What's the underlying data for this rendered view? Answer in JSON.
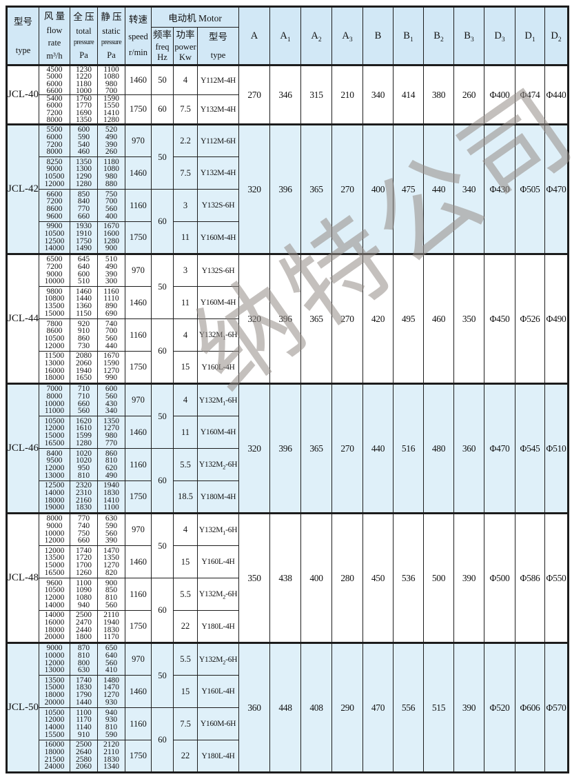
{
  "colors": {
    "header_bg": "#d2e8f6",
    "shaded_row_bg": "#dff0f9",
    "border": "#1c1c1c",
    "watermark": "#948d86"
  },
  "watermark_text": "纳特公司",
  "header": {
    "type_col": {
      "zh": "型号",
      "en": "type"
    },
    "flow_col": {
      "lines": [
        "风 量",
        "flow",
        "rate",
        "m³/h"
      ]
    },
    "total_col": {
      "lines": [
        "全 压",
        "total",
        "pressure",
        "Pa"
      ]
    },
    "static_col": {
      "lines": [
        "静 压",
        "static",
        "pressure",
        "Pa"
      ]
    },
    "speed_col": {
      "lines": [
        "转速",
        "speed",
        "r/min"
      ]
    },
    "motor_group": "电动机 Motor",
    "freq_col": {
      "lines": [
        "频率",
        "freq",
        "Hz"
      ]
    },
    "power_col": {
      "lines": [
        "功率",
        "power",
        "Kw"
      ]
    },
    "motor_type_col": {
      "zh": "型号",
      "en": "type"
    },
    "dim_cols": [
      {
        "base": "A",
        "sub": ""
      },
      {
        "base": "A",
        "sub": "1"
      },
      {
        "base": "A",
        "sub": "2"
      },
      {
        "base": "A",
        "sub": "3"
      },
      {
        "base": "B",
        "sub": ""
      },
      {
        "base": "B",
        "sub": "1"
      },
      {
        "base": "B",
        "sub": "2"
      },
      {
        "base": "B",
        "sub": "3"
      },
      {
        "base": "D",
        "sub": "3"
      },
      {
        "base": "D",
        "sub": "1"
      },
      {
        "base": "D",
        "sub": "2"
      }
    ]
  },
  "sections": [
    {
      "type": "JCL-40",
      "shaded": false,
      "groups": [
        {
          "freq": "50",
          "blocks": [
            {
              "flows": [
                "4500",
                "5000",
                "6000",
                "6600"
              ],
              "totals": [
                "1230",
                "1220",
                "1180",
                "1000"
              ],
              "statics": [
                "1100",
                "1080",
                "980",
                "700"
              ],
              "speed": "1460",
              "power": "4",
              "motor": {
                "base": "Y112M-4H",
                "sub": "",
                "rest": ""
              }
            }
          ]
        },
        {
          "freq": "60",
          "blocks": [
            {
              "flows": [
                "5400",
                "6000",
                "7200",
                "8000"
              ],
              "totals": [
                "1760",
                "1770",
                "1690",
                "1350"
              ],
              "statics": [
                "1590",
                "1550",
                "1410",
                "1280"
              ],
              "speed": "1750",
              "power": "7.5",
              "motor": {
                "base": "Y132M-4H",
                "sub": "",
                "rest": ""
              }
            }
          ]
        }
      ],
      "dims": [
        "270",
        "346",
        "315",
        "210",
        "340",
        "414",
        "380",
        "260",
        "Φ400",
        "Φ474",
        "Φ440"
      ]
    },
    {
      "type": "JCL-42",
      "shaded": true,
      "groups": [
        {
          "freq": "50",
          "blocks": [
            {
              "flows": [
                "5500",
                "6000",
                "7200",
                "8000"
              ],
              "totals": [
                "600",
                "590",
                "540",
                "460"
              ],
              "statics": [
                "520",
                "490",
                "390",
                "260"
              ],
              "speed": "970",
              "power": "2.2",
              "motor": {
                "base": "Y112M-6H",
                "sub": "",
                "rest": ""
              }
            },
            {
              "flows": [
                "8250",
                "9000",
                "10500",
                "12000"
              ],
              "totals": [
                "1350",
                "1300",
                "1290",
                "1280"
              ],
              "statics": [
                "1180",
                "1080",
                "980",
                "880"
              ],
              "speed": "1460",
              "power": "7.5",
              "motor": {
                "base": "Y132M-4H",
                "sub": "",
                "rest": ""
              }
            }
          ]
        },
        {
          "freq": "60",
          "blocks": [
            {
              "flows": [
                "6600",
                "7200",
                "8600",
                "9600"
              ],
              "totals": [
                "850",
                "840",
                "770",
                "660"
              ],
              "statics": [
                "750",
                "700",
                "560",
                "400"
              ],
              "speed": "1160",
              "power": "3",
              "motor": {
                "base": "Y132S-6H",
                "sub": "",
                "rest": ""
              }
            },
            {
              "flows": [
                "9900",
                "10500",
                "12500",
                "14000"
              ],
              "totals": [
                "1930",
                "1910",
                "1750",
                "1490"
              ],
              "statics": [
                "1670",
                "1600",
                "1280",
                "900"
              ],
              "speed": "1750",
              "power": "11",
              "motor": {
                "base": "Y160M-4H",
                "sub": "",
                "rest": ""
              }
            }
          ]
        }
      ],
      "dims": [
        "320",
        "396",
        "365",
        "270",
        "400",
        "475",
        "440",
        "340",
        "Φ430",
        "Φ505",
        "Φ470"
      ]
    },
    {
      "type": "JCL-44",
      "shaded": false,
      "groups": [
        {
          "freq": "50",
          "blocks": [
            {
              "flows": [
                "6500",
                "7200",
                "9000",
                "10000"
              ],
              "totals": [
                "645",
                "640",
                "600",
                "510"
              ],
              "statics": [
                "510",
                "490",
                "390",
                "300"
              ],
              "speed": "970",
              "power": "3",
              "motor": {
                "base": "Y132S-6H",
                "sub": "",
                "rest": ""
              }
            },
            {
              "flows": [
                "9800",
                "10800",
                "13500",
                "15000"
              ],
              "totals": [
                "1460",
                "1440",
                "1360",
                "1150"
              ],
              "statics": [
                "1160",
                "1110",
                "890",
                "690"
              ],
              "speed": "1460",
              "power": "11",
              "motor": {
                "base": "Y160M-4H",
                "sub": "",
                "rest": ""
              }
            }
          ]
        },
        {
          "freq": "60",
          "blocks": [
            {
              "flows": [
                "7800",
                "8600",
                "10500",
                "12000"
              ],
              "totals": [
                "920",
                "910",
                "860",
                "730"
              ],
              "statics": [
                "740",
                "700",
                "560",
                "440"
              ],
              "speed": "1160",
              "power": "4",
              "motor": {
                "base": "Y132M",
                "sub": "1",
                "rest": "-6H"
              }
            },
            {
              "flows": [
                "11500",
                "13000",
                "16000",
                "18000"
              ],
              "totals": [
                "2080",
                "2060",
                "1940",
                "1650"
              ],
              "statics": [
                "1670",
                "1590",
                "1270",
                "990"
              ],
              "speed": "1750",
              "power": "15",
              "motor": {
                "base": "Y160L-4H",
                "sub": "",
                "rest": ""
              }
            }
          ]
        }
      ],
      "dims": [
        "320",
        "396",
        "365",
        "270",
        "420",
        "495",
        "460",
        "350",
        "Φ450",
        "Φ526",
        "Φ490"
      ]
    },
    {
      "type": "JCL-46",
      "shaded": true,
      "groups": [
        {
          "freq": "50",
          "blocks": [
            {
              "flows": [
                "7000",
                "8000",
                "10000",
                "11000"
              ],
              "totals": [
                "710",
                "710",
                "660",
                "560"
              ],
              "statics": [
                "600",
                "560",
                "430",
                "340"
              ],
              "speed": "970",
              "power": "4",
              "motor": {
                "base": "Y132M",
                "sub": "1",
                "rest": "-6H"
              }
            },
            {
              "flows": [
                "10500",
                "12000",
                "15000",
                "16500"
              ],
              "totals": [
                "1620",
                "1610",
                "1599",
                "1280"
              ],
              "statics": [
                "1350",
                "1270",
                "980",
                "770"
              ],
              "speed": "1460",
              "power": "11",
              "motor": {
                "base": "Y160M-4H",
                "sub": "",
                "rest": ""
              }
            }
          ]
        },
        {
          "freq": "60",
          "blocks": [
            {
              "flows": [
                "8400",
                "9500",
                "12000",
                "13000"
              ],
              "totals": [
                "1020",
                "1020",
                "950",
                "810"
              ],
              "statics": [
                "860",
                "810",
                "620",
                "490"
              ],
              "speed": "1160",
              "power": "5.5",
              "motor": {
                "base": "Y132M",
                "sub": "2",
                "rest": "-6H"
              }
            },
            {
              "flows": [
                "12500",
                "14000",
                "18000",
                "19000"
              ],
              "totals": [
                "2320",
                "2310",
                "2160",
                "1830"
              ],
              "statics": [
                "1940",
                "1830",
                "1410",
                "1100"
              ],
              "speed": "1750",
              "power": "18.5",
              "motor": {
                "base": "Y180M-4H",
                "sub": "",
                "rest": ""
              }
            }
          ]
        }
      ],
      "dims": [
        "320",
        "396",
        "365",
        "270",
        "440",
        "516",
        "480",
        "360",
        "Φ470",
        "Φ545",
        "Φ510"
      ]
    },
    {
      "type": "JCL-48",
      "shaded": false,
      "groups": [
        {
          "freq": "50",
          "blocks": [
            {
              "flows": [
                "8000",
                "9000",
                "10000",
                "12000"
              ],
              "totals": [
                "770",
                "740",
                "750",
                "660"
              ],
              "statics": [
                "630",
                "590",
                "560",
                "390"
              ],
              "speed": "970",
              "power": "4",
              "motor": {
                "base": "Y132M",
                "sub": "1",
                "rest": "-6H"
              }
            },
            {
              "flows": [
                "12000",
                "13500",
                "15000",
                "16500"
              ],
              "totals": [
                "1740",
                "1720",
                "1700",
                "1260"
              ],
              "statics": [
                "1470",
                "1350",
                "1270",
                "820"
              ],
              "speed": "1460",
              "power": "15",
              "motor": {
                "base": "Y160L-4H",
                "sub": "",
                "rest": ""
              }
            }
          ]
        },
        {
          "freq": "60",
          "blocks": [
            {
              "flows": [
                "9600",
                "10500",
                "12000",
                "14000"
              ],
              "totals": [
                "1100",
                "1090",
                "1080",
                "940"
              ],
              "statics": [
                "900",
                "850",
                "810",
                "560"
              ],
              "speed": "1160",
              "power": "5.5",
              "motor": {
                "base": "Y132M",
                "sub": "2",
                "rest": "-6H"
              }
            },
            {
              "flows": [
                "14000",
                "16000",
                "18000",
                "20000"
              ],
              "totals": [
                "2500",
                "2470",
                "2440",
                "1800"
              ],
              "statics": [
                "2110",
                "1940",
                "1830",
                "1170"
              ],
              "speed": "1750",
              "power": "22",
              "motor": {
                "base": "Y180L-4H",
                "sub": "",
                "rest": ""
              }
            }
          ]
        }
      ],
      "dims": [
        "350",
        "438",
        "400",
        "280",
        "450",
        "536",
        "500",
        "390",
        "Φ500",
        "Φ586",
        "Φ550"
      ]
    },
    {
      "type": "JCL-50",
      "shaded": true,
      "groups": [
        {
          "freq": "50",
          "blocks": [
            {
              "flows": [
                "9000",
                "10000",
                "12000",
                "13000"
              ],
              "totals": [
                "870",
                "810",
                "800",
                "630"
              ],
              "statics": [
                "650",
                "640",
                "560",
                "410"
              ],
              "speed": "970",
              "power": "5.5",
              "motor": {
                "base": "Y132M",
                "sub": "2",
                "rest": "-6H"
              }
            },
            {
              "flows": [
                "13500",
                "15000",
                "18000",
                "20000"
              ],
              "totals": [
                "1740",
                "1830",
                "1790",
                "1440"
              ],
              "statics": [
                "1480",
                "1470",
                "1270",
                "930"
              ],
              "speed": "1460",
              "power": "15",
              "motor": {
                "base": "Y160L-4H",
                "sub": "",
                "rest": ""
              }
            }
          ]
        },
        {
          "freq": "60",
          "blocks": [
            {
              "flows": [
                "10500",
                "12000",
                "14000",
                "15500"
              ],
              "totals": [
                "1100",
                "1170",
                "1140",
                "910"
              ],
              "statics": [
                "940",
                "930",
                "810",
                "590"
              ],
              "speed": "1160",
              "power": "7.5",
              "motor": {
                "base": "Y160M-6H",
                "sub": "",
                "rest": ""
              }
            },
            {
              "flows": [
                "16000",
                "18000",
                "21500",
                "24000"
              ],
              "totals": [
                "2500",
                "2640",
                "2580",
                "2060"
              ],
              "statics": [
                "2120",
                "2110",
                "1830",
                "1340"
              ],
              "speed": "1750",
              "power": "22",
              "motor": {
                "base": "Y180L-4H",
                "sub": "",
                "rest": ""
              }
            }
          ]
        }
      ],
      "dims": [
        "360",
        "448",
        "408",
        "290",
        "470",
        "556",
        "515",
        "390",
        "Φ520",
        "Φ606",
        "Φ570"
      ]
    }
  ]
}
